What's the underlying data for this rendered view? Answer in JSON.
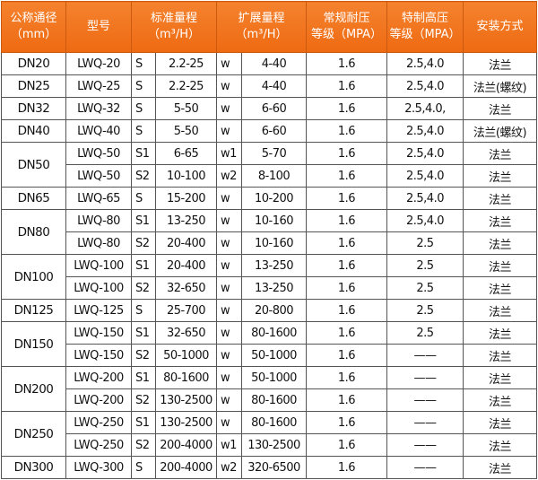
{
  "colors": {
    "header_bg": "#f07020",
    "header_text": "#ffffff",
    "border": "#555555"
  },
  "headers": [
    {
      "line1": "公称通径",
      "line2": "（mm）",
      "colspan": 1
    },
    {
      "line1": "型号",
      "line2": "",
      "colspan": 1
    },
    {
      "line1": "标准量程",
      "line2": "（m³/H）",
      "colspan": 2
    },
    {
      "line1": "扩展量程",
      "line2": "（m³/H）",
      "colspan": 2
    },
    {
      "line1": "常规耐压",
      "line2": "等级（MPA）",
      "colspan": 1
    },
    {
      "line1": "特制高压",
      "line2": "等级（MPA）",
      "colspan": 1
    },
    {
      "line1": "安装方式",
      "line2": "",
      "colspan": 1
    }
  ],
  "groups": [
    {
      "dn": "DN20",
      "rows": [
        [
          "LWQ-20",
          "S",
          "2.2-25",
          "w",
          "4-40",
          "1.6",
          "2.5,4.0",
          "法兰"
        ]
      ]
    },
    {
      "dn": "DN25",
      "rows": [
        [
          "LWQ-25",
          "S",
          "2.2-25",
          "w",
          "4-40",
          "1.6",
          "2.5,4.0",
          "法兰(螺纹)"
        ]
      ]
    },
    {
      "dn": "DN32",
      "rows": [
        [
          "LWQ-32",
          "S",
          "5-50",
          "w",
          "6-60",
          "1.6",
          "2.5,4.0,",
          "法兰"
        ]
      ]
    },
    {
      "dn": "DN40",
      "rows": [
        [
          "LWQ-40",
          "S",
          "5-50",
          "w",
          "6-60",
          "1.6",
          "2.5,4.0",
          "法兰(螺纹)"
        ]
      ]
    },
    {
      "dn": "DN50",
      "rows": [
        [
          "LWQ-50",
          "S1",
          "6-65",
          "w1",
          "5-70",
          "1.6",
          "2.5,4.0",
          "法兰"
        ],
        [
          "LWQ-50",
          "S2",
          "10-100",
          "w2",
          "8-100",
          "1.6",
          "2.5,4.0",
          "法兰"
        ]
      ]
    },
    {
      "dn": "DN65",
      "rows": [
        [
          "LWQ-65",
          "S",
          "15-200",
          "w",
          "10-200",
          "1.6",
          "2.5,4.0",
          "法兰"
        ]
      ]
    },
    {
      "dn": "DN80",
      "rows": [
        [
          "LWQ-80",
          "S1",
          "13-250",
          "w",
          "10-160",
          "1.6",
          "2.5,4.0",
          "法兰"
        ],
        [
          "LWQ-80",
          "S2",
          "20-400",
          "w",
          "10-160",
          "1.6",
          "2.5",
          "法兰"
        ]
      ]
    },
    {
      "dn": "DN100",
      "rows": [
        [
          "LWQ-100",
          "S1",
          "20-400",
          "w",
          "13-250",
          "1.6",
          "2.5",
          "法兰"
        ],
        [
          "LWQ-100",
          "S2",
          "32-650",
          "w",
          "13-250",
          "1.6",
          "2.5",
          "法兰"
        ]
      ]
    },
    {
      "dn": "DN125",
      "rows": [
        [
          "LWQ-125",
          "S",
          "25-700",
          "w",
          "20-800",
          "1.6",
          "2.5",
          "法兰"
        ]
      ]
    },
    {
      "dn": "DN150",
      "rows": [
        [
          "LWQ-150",
          "S1",
          "32-650",
          "w",
          "80-1600",
          "1.6",
          "2.5",
          "法兰"
        ],
        [
          "LWQ-150",
          "S2",
          "50-1000",
          "w",
          "50-1000",
          "1.6",
          "——",
          "法兰"
        ]
      ]
    },
    {
      "dn": "DN200",
      "rows": [
        [
          "LWQ-200",
          "S1",
          "80-1600",
          "w",
          "50-1000",
          "1.6",
          "——",
          "法兰"
        ],
        [
          "LWQ-200",
          "S2",
          "130-2500",
          "w",
          "80-1600",
          "1.6",
          "——",
          "法兰"
        ]
      ]
    },
    {
      "dn": "DN250",
      "rows": [
        [
          "LWQ-250",
          "S1",
          "130-2500",
          "w",
          "80-1600",
          "1.6",
          "——",
          "法兰"
        ],
        [
          "LWQ-250",
          "S2",
          "200-4000",
          "w1",
          "130-2500",
          "1.6",
          "——",
          "法兰"
        ]
      ]
    },
    {
      "dn": "DN300",
      "rows": [
        [
          "LWQ-300",
          "S",
          "200-4000",
          "w2",
          "320-6500",
          "1.6",
          "——",
          "法兰"
        ]
      ]
    }
  ]
}
